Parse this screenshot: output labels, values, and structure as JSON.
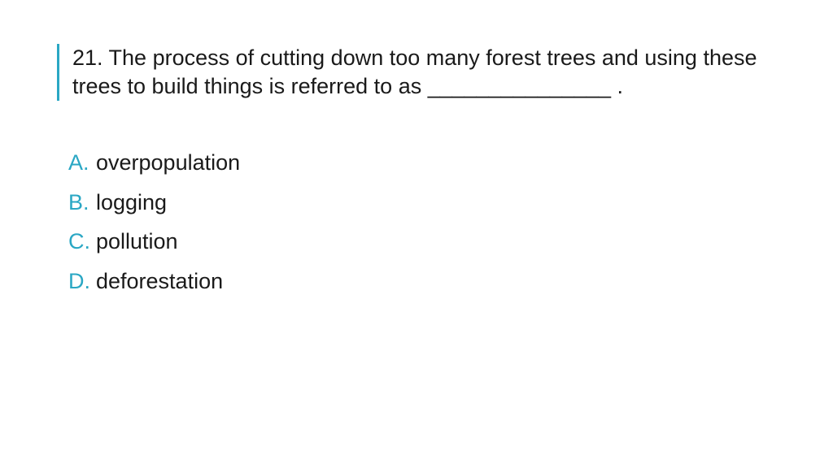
{
  "colors": {
    "accent": "#2aa7c4",
    "text": "#1a1a1a",
    "background": "#ffffff"
  },
  "question": {
    "number": "21.",
    "text": "21. The process of cutting down too many forest trees and using these trees to build things is referred to as _______________ .",
    "fontsize": 27
  },
  "options": [
    {
      "letter": "A.",
      "text": "overpopulation"
    },
    {
      "letter": "B.",
      "text": "logging"
    },
    {
      "letter": "C.",
      "text": "pollution"
    },
    {
      "letter": "D.",
      "text": "deforestation"
    }
  ]
}
